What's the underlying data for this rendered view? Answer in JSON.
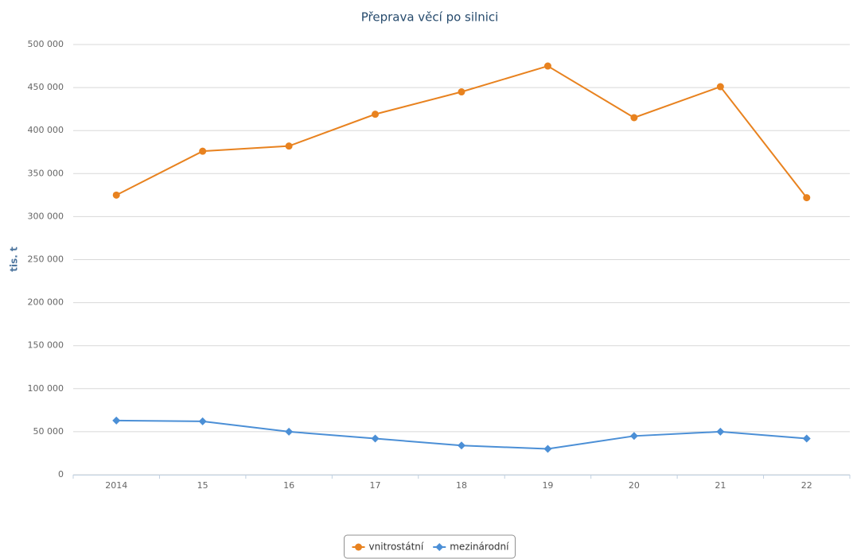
{
  "chart_data": {
    "type": "line",
    "title": "Přeprava věcí po silnici",
    "y_label": "tis. t",
    "categories": [
      "2014",
      "15",
      "16",
      "17",
      "18",
      "19",
      "20",
      "21",
      "22"
    ],
    "series": [
      {
        "name": "vnitrostátní",
        "color": "#e8821f",
        "values": [
          325000,
          376000,
          382000,
          419000,
          445000,
          475000,
          415000,
          451000,
          322000
        ]
      },
      {
        "name": "mezinárodní",
        "color": "#4b8fd6",
        "values": [
          63000,
          62000,
          50000,
          42000,
          34000,
          30000,
          45000,
          50000,
          42000
        ]
      }
    ],
    "ylim": [
      0,
      500000
    ],
    "yticks": [
      {
        "value": 0,
        "label": "0"
      },
      {
        "value": 50000,
        "label": "50 000"
      },
      {
        "value": 100000,
        "label": "100 000"
      },
      {
        "value": 150000,
        "label": "150 000"
      },
      {
        "value": 200000,
        "label": "200 000"
      },
      {
        "value": 250000,
        "label": "250 000"
      },
      {
        "value": 300000,
        "label": "300 000"
      },
      {
        "value": 350000,
        "label": "350 000"
      },
      {
        "value": 400000,
        "label": "400 000"
      },
      {
        "value": 450000,
        "label": "450 000"
      },
      {
        "value": 500000,
        "label": "500 000"
      }
    ],
    "grid": true,
    "legend": "bottom"
  }
}
